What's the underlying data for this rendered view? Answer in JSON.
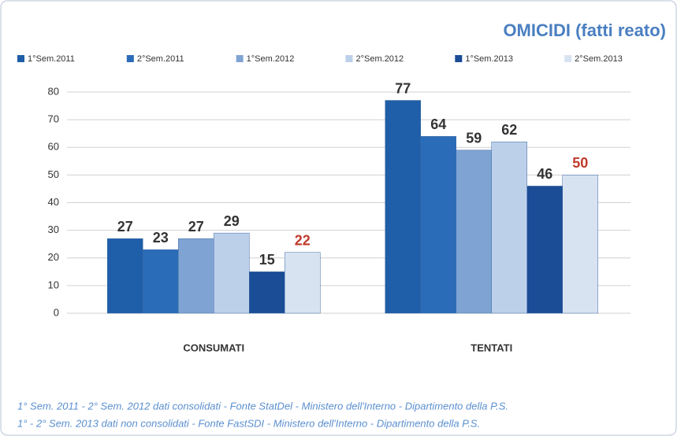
{
  "chart_data": {
    "type": "bar",
    "title": "OMICIDI (fatti reato)",
    "categories": [
      "CONSUMATI",
      "TENTATI"
    ],
    "series": [
      {
        "name": "1°Sem.2011",
        "color": "#1f5ea8",
        "label_color": "#333333",
        "values": [
          27,
          77
        ]
      },
      {
        "name": "2°Sem.2011",
        "color": "#2b6cb8",
        "label_color": "#333333",
        "values": [
          23,
          64
        ]
      },
      {
        "name": "1°Sem.2012",
        "color": "#7fa4d3",
        "label_color": "#333333",
        "values": [
          27,
          59
        ]
      },
      {
        "name": "2°Sem.2012",
        "color": "#bdd0ea",
        "label_color": "#333333",
        "values": [
          29,
          62
        ]
      },
      {
        "name": "1°Sem.2013",
        "color": "#1a4d96",
        "label_color": "#333333",
        "values": [
          15,
          46
        ]
      },
      {
        "name": "2°Sem.2013",
        "color": "#d8e3f2",
        "label_color": "#c0392b",
        "values": [
          22,
          50
        ]
      }
    ],
    "ylim": [
      0,
      80
    ],
    "yticks": [
      0,
      10,
      20,
      30,
      40,
      50,
      60,
      70,
      80
    ],
    "grid": true,
    "legend": "top",
    "notes": [
      "1° Sem. 2011 - 2° Sem. 2012 dati consolidati - Fonte StatDel - Ministero dell'Interno - Dipartimento della P.S.",
      "1° - 2° Sem. 2013 dati non consolidati - Fonte FastSDI - Ministero dell'Interno - Dipartimento della P.S."
    ]
  }
}
